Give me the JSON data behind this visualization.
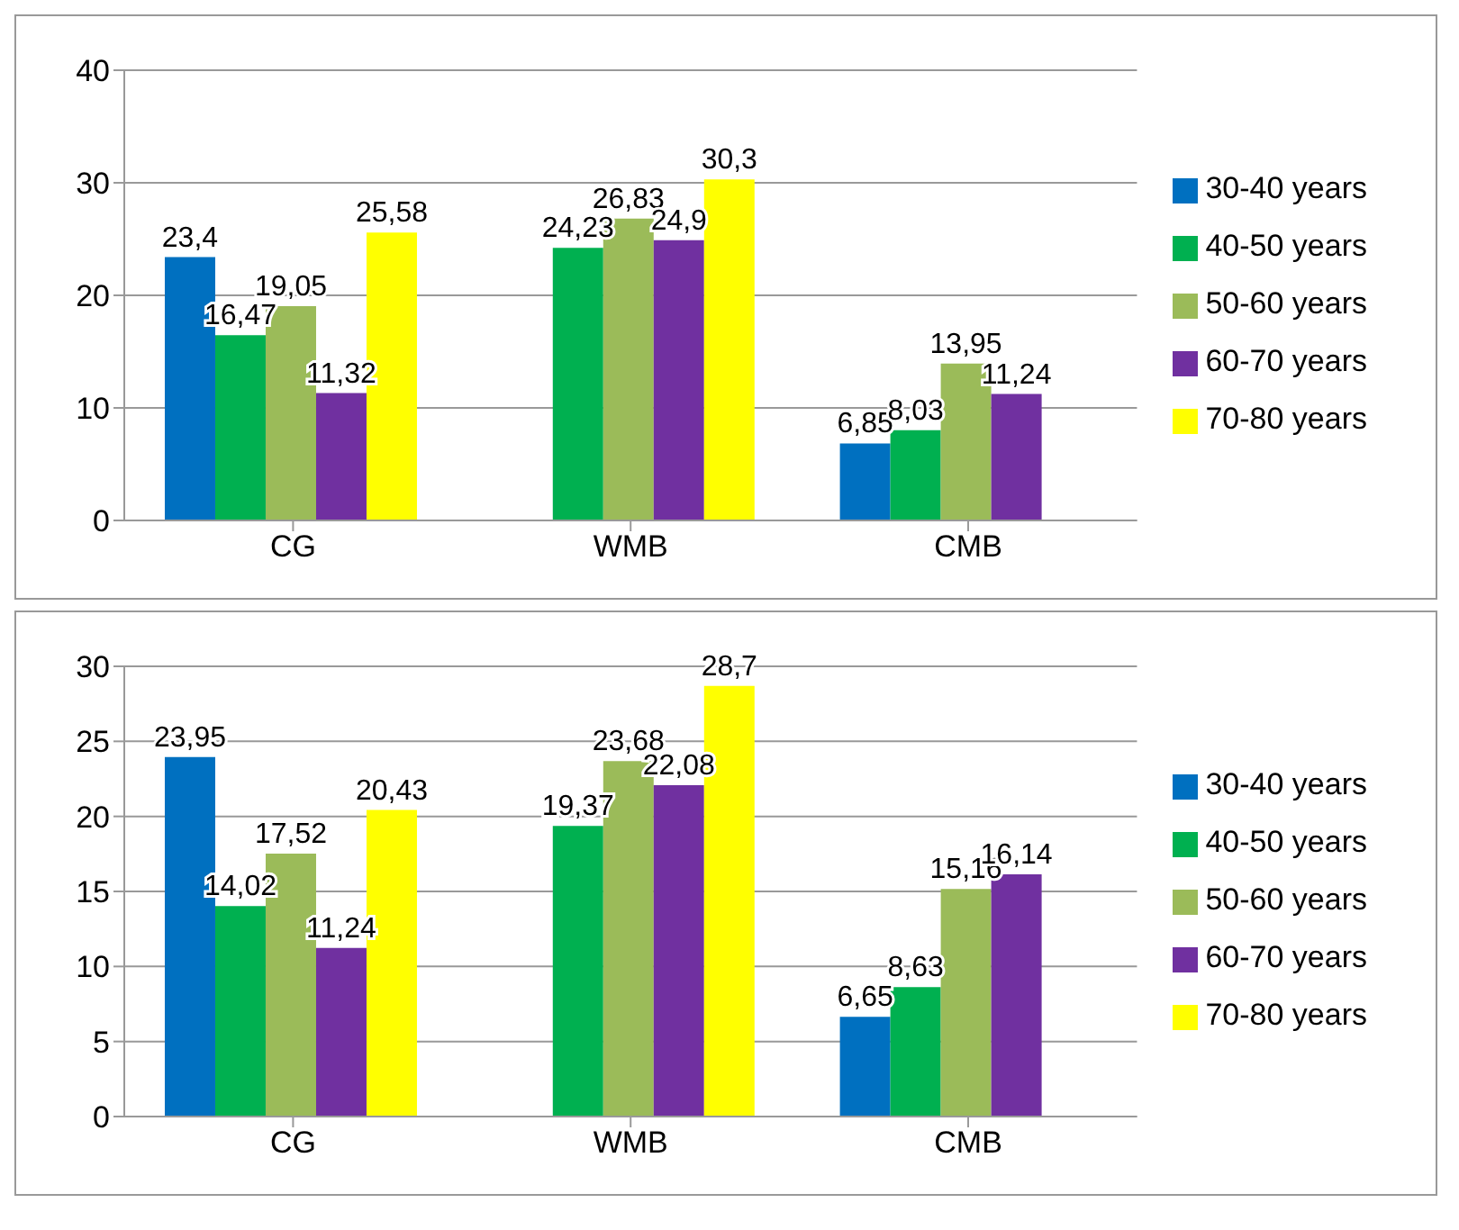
{
  "chart_data": [
    {
      "type": "bar",
      "categories": [
        "CG",
        "WMB",
        "CMB"
      ],
      "ylim": [
        0,
        40
      ],
      "yticks": [
        0,
        10,
        20,
        30,
        40
      ],
      "grid": "y",
      "legend": "right",
      "series": [
        {
          "name": "30-40 years",
          "color": "#0070c0",
          "values": [
            23.4,
            null,
            6.85
          ],
          "value_labels": [
            "23,4",
            null,
            "6,85"
          ]
        },
        {
          "name": "40-50 years",
          "color": "#00b050",
          "values": [
            16.47,
            24.23,
            8.03
          ],
          "value_labels": [
            "16,47",
            "24,23",
            "8,03"
          ]
        },
        {
          "name": "50-60 years",
          "color": "#9bbb59",
          "values": [
            19.05,
            26.83,
            13.95
          ],
          "value_labels": [
            "19,05",
            "26,83",
            "13,95"
          ]
        },
        {
          "name": "60-70 years",
          "color": "#7030a0",
          "values": [
            11.32,
            24.9,
            11.24
          ],
          "value_labels": [
            "11,32",
            "24,9",
            "11,24"
          ]
        },
        {
          "name": "70-80 years",
          "color": "#ffff00",
          "values": [
            25.58,
            30.3,
            null
          ],
          "value_labels": [
            "25,58",
            "30,3",
            null
          ]
        }
      ]
    },
    {
      "type": "bar",
      "categories": [
        "CG",
        "WMB",
        "CMB"
      ],
      "ylim": [
        0,
        30
      ],
      "yticks": [
        0,
        5,
        10,
        15,
        20,
        25,
        30
      ],
      "grid": "y",
      "legend": "right",
      "series": [
        {
          "name": "30-40 years",
          "color": "#0070c0",
          "values": [
            23.95,
            null,
            6.65
          ],
          "value_labels": [
            "23,95",
            null,
            "6,65"
          ]
        },
        {
          "name": "40-50 years",
          "color": "#00b050",
          "values": [
            14.02,
            19.37,
            8.63
          ],
          "value_labels": [
            "14,02",
            "19,37",
            "8,63"
          ]
        },
        {
          "name": "50-60 years",
          "color": "#9bbb59",
          "values": [
            17.52,
            23.68,
            15.16
          ],
          "value_labels": [
            "17,52",
            "23,68",
            "15,16"
          ]
        },
        {
          "name": "60-70 years",
          "color": "#7030a0",
          "values": [
            11.24,
            22.08,
            16.14
          ],
          "value_labels": [
            "11,24",
            "22,08",
            "16,14"
          ]
        },
        {
          "name": "70-80 years",
          "color": "#ffff00",
          "values": [
            20.43,
            28.7,
            null
          ],
          "value_labels": [
            "20,43",
            "28,7",
            null
          ]
        }
      ]
    }
  ]
}
